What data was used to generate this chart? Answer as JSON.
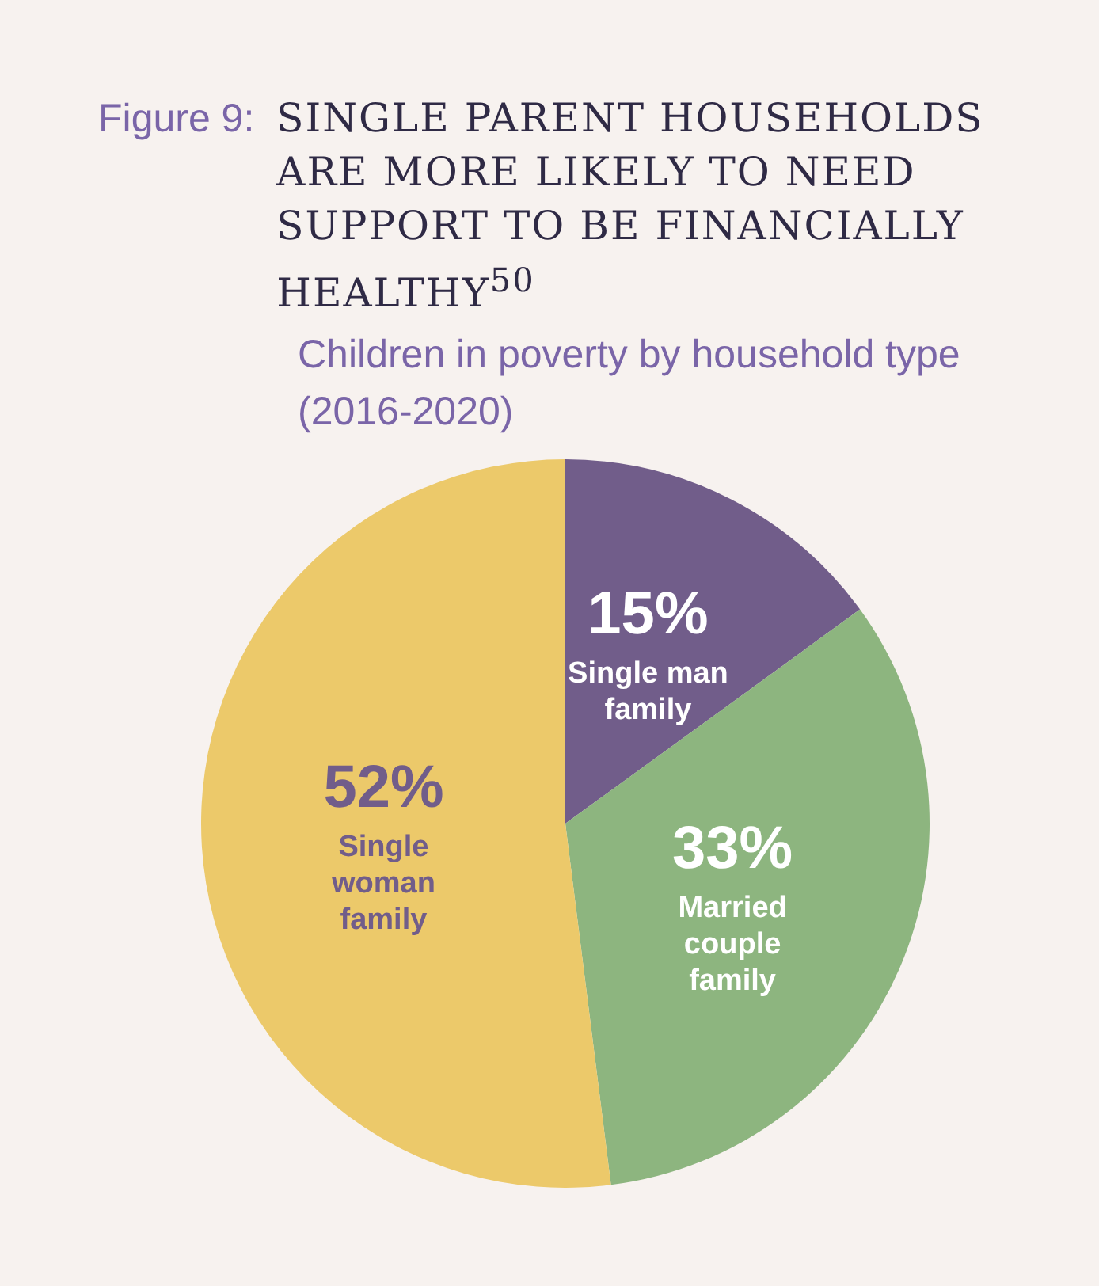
{
  "chart_data": {
    "type": "pie",
    "title": "Figure 9: SINGLE PARENT HOUSEHOLDS ARE MORE LIKELY TO NEED SUPPORT TO BE FINANCIALLY HEALTHY$^{50}$",
    "subtitle": "Children in poverty by household type (2016-2020)",
    "categories": [
      "Single man family",
      "Married couple family",
      "Single woman family"
    ],
    "values": [
      15,
      33,
      52
    ],
    "value_labels": [
      "15%",
      "33%",
      "52%"
    ],
    "colors": [
      "#715d8a",
      "#8db57f",
      "#ecc96a"
    ],
    "legend": false
  }
}
